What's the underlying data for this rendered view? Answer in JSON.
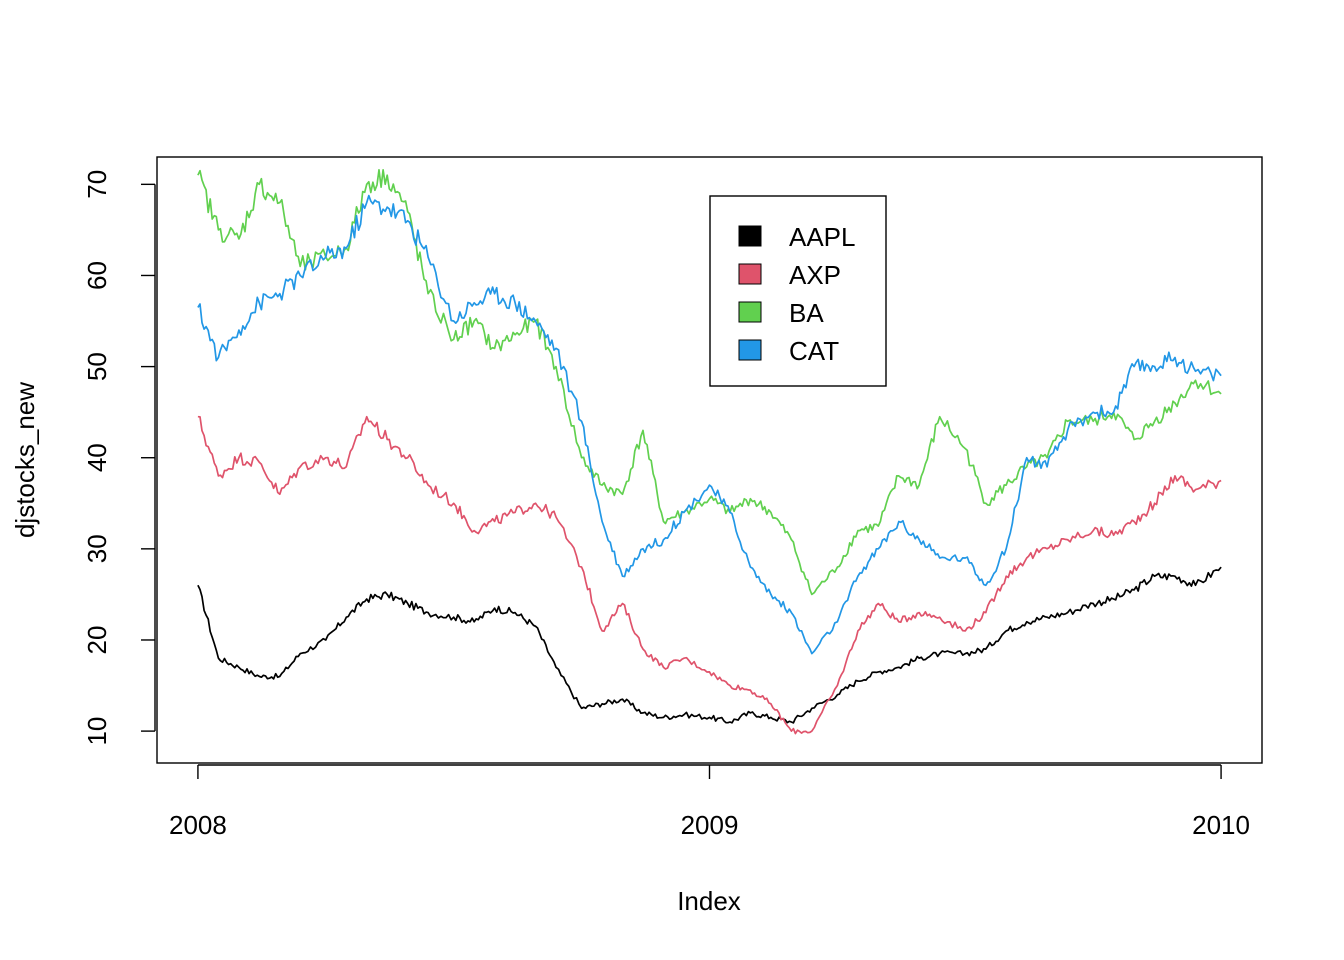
{
  "chart_data": {
    "type": "line",
    "title": "",
    "xlabel": "Index",
    "ylabel": "djstocks_new",
    "xlim": [
      2007.92,
      2010.08
    ],
    "ylim": [
      6.5,
      73
    ],
    "x_ticks": [
      2008,
      2009,
      2010
    ],
    "x_tick_labels": [
      "2008",
      "2009",
      "2010"
    ],
    "y_ticks": [
      10,
      20,
      30,
      40,
      50,
      60,
      70
    ],
    "y_tick_labels": [
      "10",
      "20",
      "30",
      "40",
      "50",
      "60",
      "70"
    ],
    "grid": false,
    "legend_position": "top-center",
    "x": [
      2008.0,
      2008.04,
      2008.08,
      2008.12,
      2008.16,
      2008.2,
      2008.25,
      2008.29,
      2008.33,
      2008.37,
      2008.41,
      2008.45,
      2008.5,
      2008.54,
      2008.58,
      2008.62,
      2008.66,
      2008.7,
      2008.75,
      2008.79,
      2008.83,
      2008.87,
      2008.91,
      2008.95,
      2009.0,
      2009.04,
      2009.08,
      2009.12,
      2009.16,
      2009.2,
      2009.25,
      2009.29,
      2009.33,
      2009.37,
      2009.41,
      2009.45,
      2009.5,
      2009.54,
      2009.58,
      2009.62,
      2009.66,
      2009.7,
      2009.75,
      2009.79,
      2009.83,
      2009.87,
      2009.91,
      2009.95,
      2010.0
    ],
    "series": [
      {
        "name": "AAPL",
        "color": "#000000",
        "values": [
          26,
          18,
          17,
          16,
          16,
          18.5,
          20,
          22.5,
          24.5,
          25,
          24,
          23,
          22.5,
          22,
          23.5,
          23,
          21.5,
          17,
          12.5,
          13,
          13.5,
          12,
          11.5,
          11.8,
          11.5,
          11,
          12,
          11.5,
          11,
          12.5,
          14,
          15.5,
          16.5,
          17,
          18,
          18.5,
          18.5,
          19,
          21,
          22,
          22.5,
          23,
          24,
          24.5,
          25.5,
          27,
          27,
          26,
          28
        ]
      },
      {
        "name": "AXP",
        "color": "#DF536B",
        "values": [
          44.5,
          38,
          40,
          39.5,
          36,
          39,
          40,
          39,
          44.5,
          42,
          40,
          37,
          35,
          32,
          33,
          34,
          35,
          33.5,
          28,
          21,
          24,
          19,
          17,
          18,
          16.5,
          15,
          14.5,
          13,
          10,
          10,
          15,
          21,
          24,
          22,
          23,
          22.5,
          21,
          23,
          27,
          29,
          30,
          31,
          32,
          31.5,
          33,
          35,
          38,
          36.5,
          37.5
        ]
      },
      {
        "name": "BA",
        "color": "#61D04F",
        "values": [
          71,
          65,
          64,
          70,
          68,
          61,
          62,
          63,
          70,
          71,
          67,
          58,
          53,
          55,
          52,
          53.5,
          55,
          50,
          40,
          37,
          36,
          43,
          33,
          34,
          35.5,
          34,
          35.5,
          34,
          31,
          25,
          28,
          32,
          32.5,
          38,
          37,
          44.5,
          41,
          35,
          37,
          39,
          40,
          44,
          44,
          45,
          42,
          44,
          46,
          48.5,
          47
        ]
      },
      {
        "name": "CAT",
        "color": "#2297E6",
        "values": [
          56.5,
          51,
          54,
          57,
          58,
          60,
          62,
          63,
          68,
          67.5,
          66,
          62,
          55,
          57,
          58,
          57,
          55,
          52,
          44,
          33,
          27,
          30,
          31,
          34,
          37,
          34,
          28,
          25,
          23,
          18.5,
          22,
          27,
          30,
          33,
          31,
          29,
          29,
          26,
          30,
          40,
          39,
          43,
          45,
          45,
          50,
          50,
          51,
          49.5,
          49
        ]
      }
    ]
  }
}
